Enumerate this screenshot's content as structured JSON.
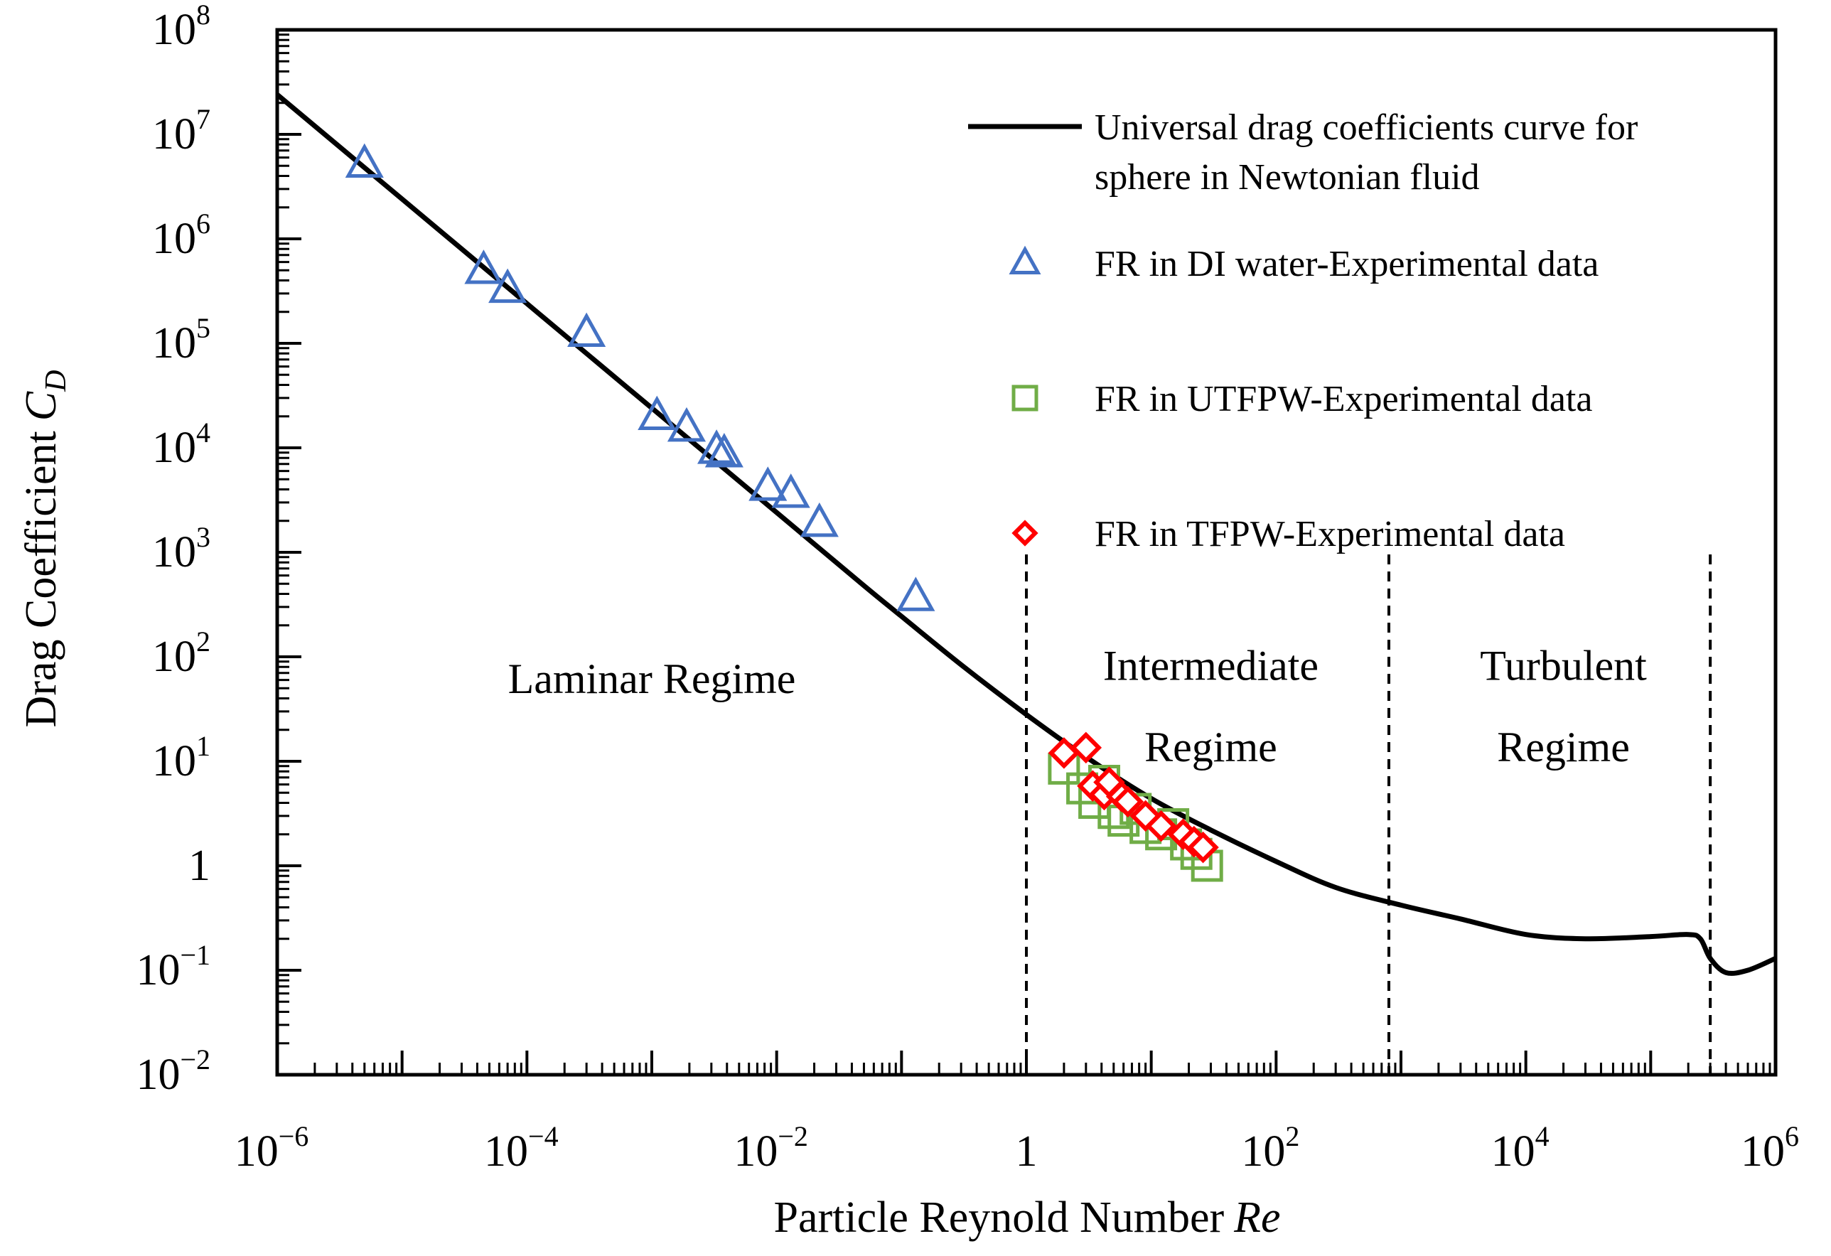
{
  "chart_data": {
    "type": "scatter",
    "x_scale": "log",
    "y_scale": "log",
    "xlim": [
      1e-06,
      1000000.0
    ],
    "ylim": [
      0.01,
      100000000.0
    ],
    "xlabel": "Particle Reynold Number",
    "xlabel_italic": "Re",
    "ylabel": "Drag Coefficient",
    "ylabel_symbol": "C",
    "ylabel_subscript": "D",
    "grid": false,
    "legend_position": "top-right",
    "x_ticks": [
      {
        "value": 1e-06,
        "base": "10",
        "exp": "−6"
      },
      {
        "value": 0.0001,
        "base": "10",
        "exp": "−4"
      },
      {
        "value": 0.01,
        "base": "10",
        "exp": "−2"
      },
      {
        "value": 1,
        "base": "1",
        "exp": ""
      },
      {
        "value": 100.0,
        "base": "10",
        "exp": "2"
      },
      {
        "value": 10000.0,
        "base": "10",
        "exp": "4"
      },
      {
        "value": 1000000.0,
        "base": "10",
        "exp": "6"
      }
    ],
    "y_ticks": [
      {
        "value": 100000000.0,
        "base": "10",
        "exp": "8"
      },
      {
        "value": 10000000.0,
        "base": "10",
        "exp": "7"
      },
      {
        "value": 1000000.0,
        "base": "10",
        "exp": "6"
      },
      {
        "value": 100000.0,
        "base": "10",
        "exp": "5"
      },
      {
        "value": 10000.0,
        "base": "10",
        "exp": "4"
      },
      {
        "value": 1000.0,
        "base": "10",
        "exp": "3"
      },
      {
        "value": 100.0,
        "base": "10",
        "exp": "2"
      },
      {
        "value": 10,
        "base": "10",
        "exp": "1"
      },
      {
        "value": 1,
        "base": "1",
        "exp": ""
      },
      {
        "value": 0.1,
        "base": "10",
        "exp": "−1"
      },
      {
        "value": 0.01,
        "base": "10",
        "exp": "−2"
      }
    ],
    "curve": {
      "name": "Universal drag coefficients curve for sphere in Newtonian fluid",
      "legend_lines": [
        "Universal drag coefficients curve for",
        "sphere in Newtonian fluid"
      ],
      "color": "#000000",
      "x": [
        1e-06,
        1e-05,
        0.0001,
        0.001,
        0.01,
        0.05,
        0.1,
        0.3,
        1,
        3,
        10,
        30,
        100,
        300,
        1000,
        3000,
        10000,
        30000,
        100000,
        200000,
        250000,
        300000,
        400000,
        600000,
        1000000
      ],
      "y": [
        24000000,
        2400000,
        240000,
        24000,
        2400,
        480,
        244,
        84,
        28,
        11,
        4.4,
        2.2,
        1.1,
        0.62,
        0.42,
        0.31,
        0.22,
        0.2,
        0.21,
        0.22,
        0.2,
        0.13,
        0.095,
        0.1,
        0.13
      ]
    },
    "series": [
      {
        "name": "FR in DI water-Experimental data",
        "marker": "triangle",
        "color": "#4472C4",
        "x": [
          5e-06,
          4.5e-05,
          7e-05,
          0.0003,
          0.0011,
          0.0019,
          0.0033,
          0.0038,
          0.0085,
          0.013,
          0.022,
          0.13
        ],
        "y": [
          5200000,
          500000,
          330000,
          125000,
          20000,
          15500,
          9500,
          8800,
          4200,
          3600,
          1900,
          370
        ]
      },
      {
        "name": "FR in UTFPW-Experimental data",
        "marker": "square",
        "color": "#70AD47",
        "x": [
          2.0,
          2.8,
          3.5,
          4.2,
          5.0,
          6.0,
          7.5,
          9.0,
          12,
          15,
          19,
          23,
          28
        ],
        "y": [
          8.5,
          5.5,
          4.0,
          6.5,
          3.2,
          2.7,
          3.5,
          2.3,
          2.0,
          2.5,
          1.6,
          1.3,
          1.0
        ]
      },
      {
        "name": "FR in TFPW-Experimental data",
        "marker": "diamond",
        "color": "#FF0000",
        "x": [
          2.0,
          3.0,
          3.4,
          4.2,
          4.6,
          5.8,
          6.5,
          9.0,
          12,
          18,
          22,
          26
        ],
        "y": [
          12,
          13.5,
          5.8,
          4.8,
          6.3,
          4.6,
          4.1,
          3.0,
          2.4,
          2.0,
          1.7,
          1.5
        ]
      }
    ],
    "regime_boundaries": [
      1,
      800,
      300000
    ],
    "regimes": [
      {
        "lines": [
          "Laminar Regime"
        ],
        "x": 0.001,
        "y": 45
      },
      {
        "lines": [
          "Intermediate",
          "Regime"
        ],
        "x": 30,
        "y": [
          60,
          10
        ]
      },
      {
        "lines": [
          "Turbulent",
          "Regime"
        ],
        "x": 20000,
        "y": [
          60,
          10
        ]
      }
    ]
  }
}
